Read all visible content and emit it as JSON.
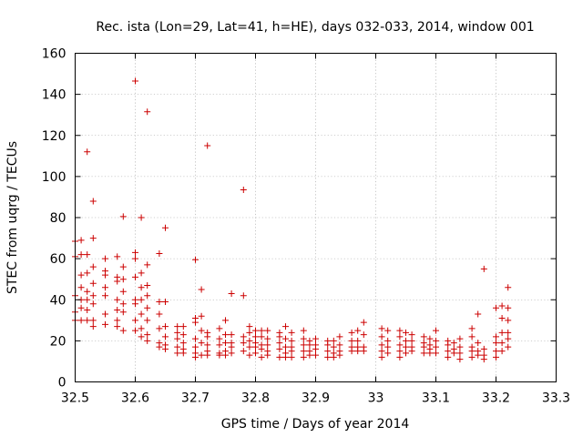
{
  "chart_data": {
    "type": "scatter",
    "title": "Rec. ista (Lon=29, Lat=41, h=HE), days 032-033, 2014, window 001",
    "xlabel": "GPS time / Days of year 2014",
    "ylabel": "STEC from uqrg / TECUs",
    "xlim": [
      32.5,
      33.3
    ],
    "ylim": [
      0,
      160
    ],
    "xticks": [
      "32.5",
      "32.6",
      "32.7",
      "32.8",
      "32.9",
      "33",
      "33.1",
      "33.2",
      "33.3"
    ],
    "yticks": [
      "0",
      "20",
      "40",
      "60",
      "80",
      "100",
      "120",
      "140",
      "160"
    ],
    "grid": true,
    "marker": "+",
    "color": "#cc0000",
    "series": [
      {
        "name": "STEC",
        "points": [
          [
            32.5,
            68.5
          ],
          [
            32.5,
            61
          ],
          [
            32.5,
            42
          ],
          [
            32.5,
            34
          ],
          [
            32.5,
            30
          ],
          [
            32.51,
            69
          ],
          [
            32.51,
            62
          ],
          [
            32.51,
            52
          ],
          [
            32.51,
            46
          ],
          [
            32.51,
            40
          ],
          [
            32.51,
            36
          ],
          [
            32.51,
            30
          ],
          [
            32.52,
            112
          ],
          [
            32.52,
            62
          ],
          [
            32.52,
            53
          ],
          [
            32.52,
            44
          ],
          [
            32.52,
            40
          ],
          [
            32.52,
            35
          ],
          [
            32.52,
            30
          ],
          [
            32.53,
            88
          ],
          [
            32.53,
            70
          ],
          [
            32.53,
            56
          ],
          [
            32.53,
            48
          ],
          [
            32.53,
            42
          ],
          [
            32.53,
            38
          ],
          [
            32.53,
            30
          ],
          [
            32.53,
            27
          ],
          [
            32.55,
            60
          ],
          [
            32.55,
            54
          ],
          [
            32.55,
            52
          ],
          [
            32.55,
            46
          ],
          [
            32.55,
            42
          ],
          [
            32.55,
            33
          ],
          [
            32.55,
            28
          ],
          [
            32.57,
            61
          ],
          [
            32.57,
            51
          ],
          [
            32.57,
            49
          ],
          [
            32.57,
            40
          ],
          [
            32.57,
            35
          ],
          [
            32.57,
            30
          ],
          [
            32.57,
            27
          ],
          [
            32.58,
            80.5
          ],
          [
            32.58,
            56
          ],
          [
            32.58,
            50
          ],
          [
            32.58,
            44
          ],
          [
            32.58,
            38
          ],
          [
            32.58,
            34
          ],
          [
            32.58,
            25
          ],
          [
            32.6,
            146.5
          ],
          [
            32.6,
            63
          ],
          [
            32.6,
            60
          ],
          [
            32.6,
            51
          ],
          [
            32.6,
            40
          ],
          [
            32.6,
            38
          ],
          [
            32.6,
            30
          ],
          [
            32.6,
            25
          ],
          [
            32.61,
            80
          ],
          [
            32.61,
            53
          ],
          [
            32.61,
            46
          ],
          [
            32.61,
            40
          ],
          [
            32.61,
            33
          ],
          [
            32.61,
            26
          ],
          [
            32.61,
            22
          ],
          [
            32.62,
            131.5
          ],
          [
            32.62,
            57
          ],
          [
            32.62,
            47
          ],
          [
            32.62,
            42
          ],
          [
            32.62,
            36
          ],
          [
            32.62,
            30
          ],
          [
            32.62,
            23
          ],
          [
            32.62,
            20
          ],
          [
            32.64,
            62.5
          ],
          [
            32.64,
            39
          ],
          [
            32.64,
            33
          ],
          [
            32.64,
            26
          ],
          [
            32.64,
            19
          ],
          [
            32.64,
            17
          ],
          [
            32.65,
            75
          ],
          [
            32.65,
            39
          ],
          [
            32.65,
            27
          ],
          [
            32.65,
            22
          ],
          [
            32.65,
            18
          ],
          [
            32.65,
            16
          ],
          [
            32.67,
            27
          ],
          [
            32.67,
            24
          ],
          [
            32.67,
            21
          ],
          [
            32.67,
            17
          ],
          [
            32.67,
            14
          ],
          [
            32.68,
            27
          ],
          [
            32.68,
            23
          ],
          [
            32.68,
            19
          ],
          [
            32.68,
            16
          ],
          [
            32.68,
            14
          ],
          [
            32.7,
            59.5
          ],
          [
            32.7,
            31
          ],
          [
            32.7,
            29
          ],
          [
            32.7,
            21
          ],
          [
            32.7,
            17
          ],
          [
            32.7,
            14
          ],
          [
            32.7,
            12
          ],
          [
            32.71,
            45
          ],
          [
            32.71,
            32
          ],
          [
            32.71,
            25
          ],
          [
            32.71,
            19
          ],
          [
            32.71,
            13
          ],
          [
            32.72,
            115
          ],
          [
            32.72,
            24
          ],
          [
            32.72,
            22
          ],
          [
            32.72,
            18
          ],
          [
            32.72,
            15
          ],
          [
            32.72,
            13
          ],
          [
            32.74,
            26
          ],
          [
            32.74,
            21
          ],
          [
            32.74,
            18
          ],
          [
            32.74,
            14
          ],
          [
            32.74,
            13
          ],
          [
            32.75,
            30
          ],
          [
            32.75,
            23
          ],
          [
            32.75,
            19
          ],
          [
            32.75,
            15
          ],
          [
            32.75,
            13
          ],
          [
            32.76,
            43
          ],
          [
            32.76,
            23
          ],
          [
            32.76,
            19
          ],
          [
            32.76,
            17
          ],
          [
            32.76,
            14
          ],
          [
            32.78,
            93.5
          ],
          [
            32.78,
            42
          ],
          [
            32.78,
            22
          ],
          [
            32.78,
            19
          ],
          [
            32.78,
            15
          ],
          [
            32.79,
            27
          ],
          [
            32.79,
            24
          ],
          [
            32.79,
            20
          ],
          [
            32.79,
            17
          ],
          [
            32.79,
            13
          ],
          [
            32.8,
            25
          ],
          [
            32.8,
            22
          ],
          [
            32.8,
            19
          ],
          [
            32.8,
            17
          ],
          [
            32.8,
            14
          ],
          [
            32.81,
            25
          ],
          [
            32.81,
            22
          ],
          [
            32.81,
            18
          ],
          [
            32.81,
            16
          ],
          [
            32.81,
            12
          ],
          [
            32.82,
            25
          ],
          [
            32.82,
            21
          ],
          [
            32.82,
            18
          ],
          [
            32.82,
            15
          ],
          [
            32.82,
            13
          ],
          [
            32.84,
            24
          ],
          [
            32.84,
            22
          ],
          [
            32.84,
            19
          ],
          [
            32.84,
            16
          ],
          [
            32.84,
            12
          ],
          [
            32.85,
            27
          ],
          [
            32.85,
            21
          ],
          [
            32.85,
            17
          ],
          [
            32.85,
            14
          ],
          [
            32.85,
            12
          ],
          [
            32.86,
            24
          ],
          [
            32.86,
            20
          ],
          [
            32.86,
            17
          ],
          [
            32.86,
            15
          ],
          [
            32.86,
            12
          ],
          [
            32.88,
            25
          ],
          [
            32.88,
            21
          ],
          [
            32.88,
            18
          ],
          [
            32.88,
            15
          ],
          [
            32.88,
            12
          ],
          [
            32.89,
            20
          ],
          [
            32.89,
            18
          ],
          [
            32.89,
            15
          ],
          [
            32.89,
            13
          ],
          [
            32.9,
            21
          ],
          [
            32.9,
            18
          ],
          [
            32.9,
            16
          ],
          [
            32.9,
            13
          ],
          [
            32.92,
            20
          ],
          [
            32.92,
            18
          ],
          [
            32.92,
            15
          ],
          [
            32.92,
            12
          ],
          [
            32.93,
            20
          ],
          [
            32.93,
            17
          ],
          [
            32.93,
            14
          ],
          [
            32.93,
            12
          ],
          [
            32.94,
            22
          ],
          [
            32.94,
            18
          ],
          [
            32.94,
            15
          ],
          [
            32.94,
            13
          ],
          [
            32.96,
            24
          ],
          [
            32.96,
            20
          ],
          [
            32.96,
            17
          ],
          [
            32.96,
            15
          ],
          [
            32.97,
            25
          ],
          [
            32.97,
            20
          ],
          [
            32.97,
            17
          ],
          [
            32.97,
            15
          ],
          [
            32.98,
            29
          ],
          [
            32.98,
            23
          ],
          [
            32.98,
            17
          ],
          [
            32.98,
            15
          ],
          [
            33.01,
            26
          ],
          [
            33.01,
            22
          ],
          [
            33.01,
            18
          ],
          [
            33.01,
            15
          ],
          [
            33.01,
            12
          ],
          [
            33.02,
            25
          ],
          [
            33.02,
            20
          ],
          [
            33.02,
            17
          ],
          [
            33.02,
            14
          ],
          [
            33.04,
            25
          ],
          [
            33.04,
            22
          ],
          [
            33.04,
            18
          ],
          [
            33.04,
            15
          ],
          [
            33.04,
            12
          ],
          [
            33.05,
            24
          ],
          [
            33.05,
            20
          ],
          [
            33.05,
            17
          ],
          [
            33.05,
            14
          ],
          [
            33.06,
            23
          ],
          [
            33.06,
            20
          ],
          [
            33.06,
            17
          ],
          [
            33.06,
            15
          ],
          [
            33.08,
            22
          ],
          [
            33.08,
            19
          ],
          [
            33.08,
            17
          ],
          [
            33.08,
            14
          ],
          [
            33.09,
            21
          ],
          [
            33.09,
            18
          ],
          [
            33.09,
            16
          ],
          [
            33.09,
            14
          ],
          [
            33.1,
            25
          ],
          [
            33.1,
            20
          ],
          [
            33.1,
            17
          ],
          [
            33.1,
            14
          ],
          [
            33.12,
            20
          ],
          [
            33.12,
            18
          ],
          [
            33.12,
            15
          ],
          [
            33.12,
            12
          ],
          [
            33.13,
            19
          ],
          [
            33.13,
            16
          ],
          [
            33.13,
            14
          ],
          [
            33.14,
            21
          ],
          [
            33.14,
            17
          ],
          [
            33.14,
            14
          ],
          [
            33.14,
            11
          ],
          [
            33.16,
            26
          ],
          [
            33.16,
            22
          ],
          [
            33.16,
            17
          ],
          [
            33.16,
            15
          ],
          [
            33.16,
            12
          ],
          [
            33.17,
            33
          ],
          [
            33.17,
            19
          ],
          [
            33.17,
            15
          ],
          [
            33.17,
            13
          ],
          [
            33.18,
            55
          ],
          [
            33.18,
            16
          ],
          [
            33.18,
            13
          ],
          [
            33.18,
            11
          ],
          [
            33.2,
            36
          ],
          [
            33.2,
            22
          ],
          [
            33.2,
            19
          ],
          [
            33.2,
            15
          ],
          [
            33.2,
            12
          ],
          [
            33.21,
            37
          ],
          [
            33.21,
            31
          ],
          [
            33.21,
            24
          ],
          [
            33.21,
            19
          ],
          [
            33.21,
            15
          ],
          [
            33.22,
            46
          ],
          [
            33.22,
            36
          ],
          [
            33.22,
            30
          ],
          [
            33.22,
            24
          ],
          [
            33.22,
            21
          ],
          [
            33.22,
            17
          ]
        ]
      }
    ]
  }
}
